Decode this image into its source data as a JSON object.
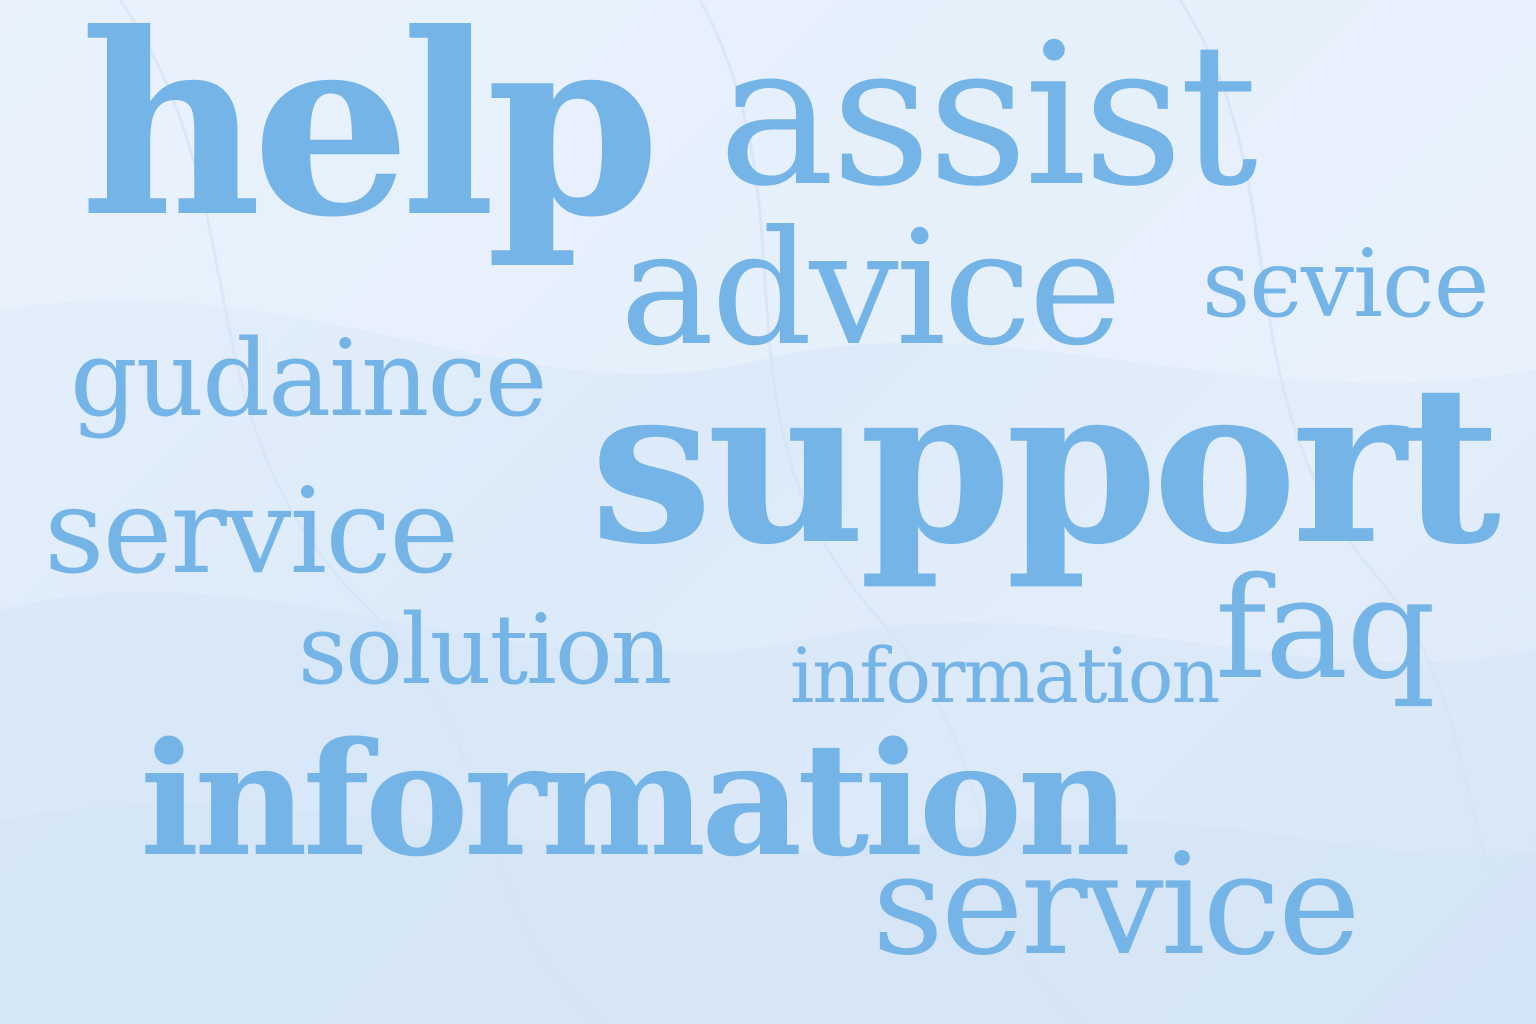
{
  "words": [
    {
      "text": "help"
    },
    {
      "text": "assist"
    },
    {
      "text": "advice"
    },
    {
      "text": "sєvice"
    },
    {
      "text": "gudaince"
    },
    {
      "text": "support"
    },
    {
      "text": "service"
    },
    {
      "text": "solution"
    },
    {
      "text": "information"
    },
    {
      "text": "faq"
    },
    {
      "text": "information"
    },
    {
      "text": "service"
    }
  ],
  "colors": {
    "text": "#74b4e6",
    "background": "#e3eefa",
    "wave": "#cfe2f6"
  }
}
